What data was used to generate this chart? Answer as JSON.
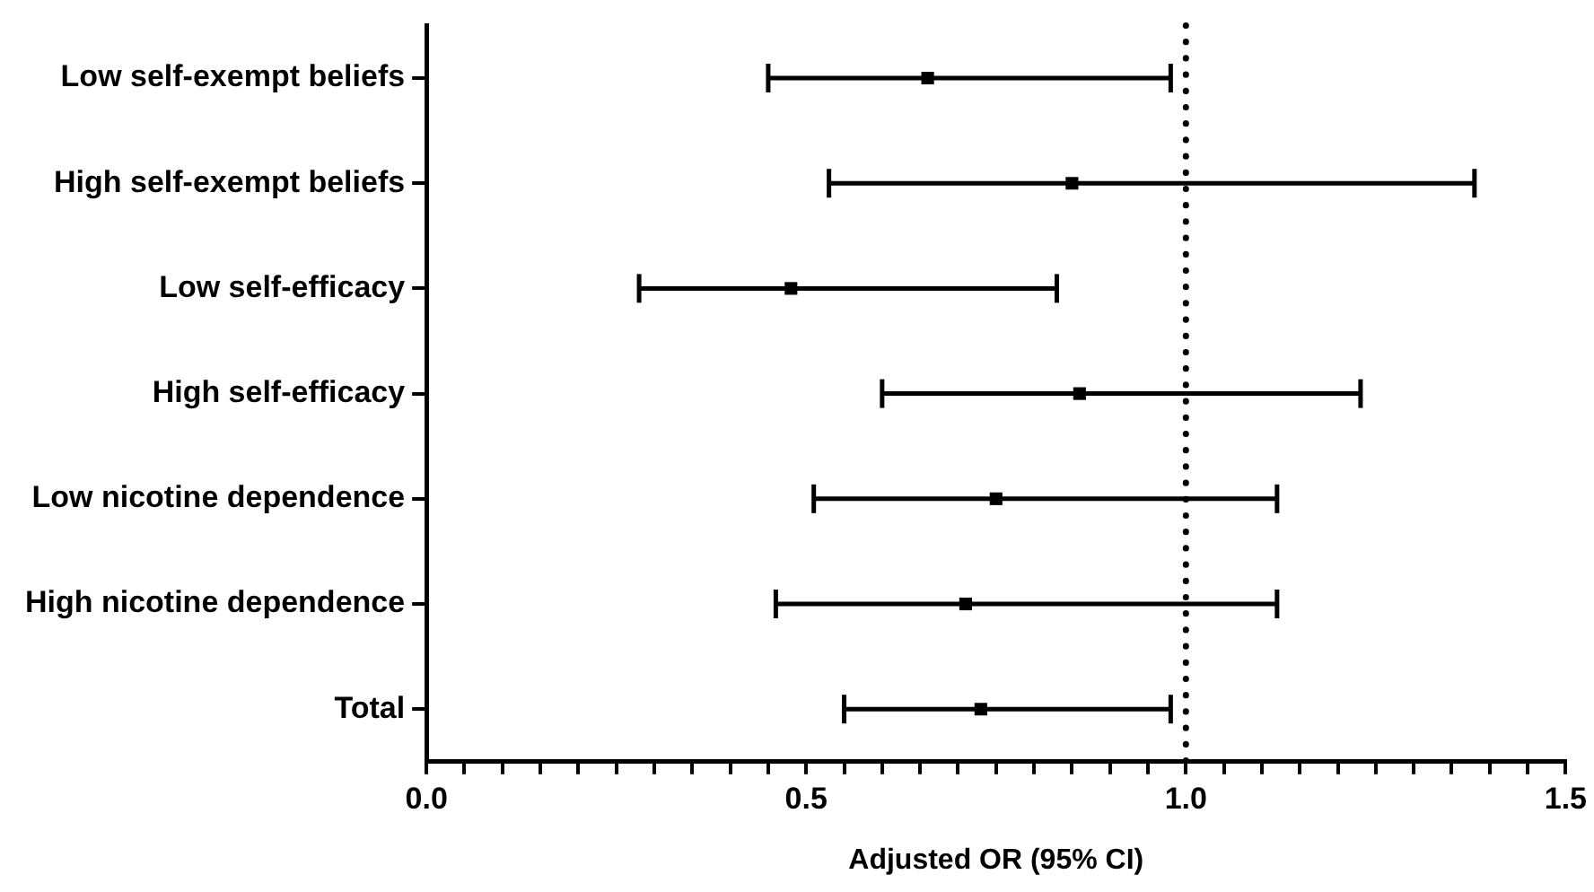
{
  "chart_data": {
    "type": "scatter",
    "orientation": "horizontal",
    "xlabel": "Adjusted OR (95% CI)",
    "categories": [
      "Low self-exempt beliefs",
      "High self-exempt beliefs",
      "Low self-efficacy",
      "High self-efficacy",
      "Low nicotine dependence",
      "High nicotine dependence",
      "Total"
    ],
    "values": [
      0.66,
      0.85,
      0.48,
      0.86,
      0.75,
      0.71,
      0.73
    ],
    "errors": [
      [
        0.45,
        0.98
      ],
      [
        0.53,
        1.38
      ],
      [
        0.28,
        0.83
      ],
      [
        0.6,
        1.23
      ],
      [
        0.51,
        1.12
      ],
      [
        0.46,
        1.12
      ],
      [
        0.55,
        0.98
      ]
    ],
    "color": "#000000",
    "xlim": [
      0,
      1.5
    ],
    "xticks": [
      {
        "value": 0,
        "label": "0.0"
      },
      {
        "value": 0.05,
        "label": null
      },
      {
        "value": 0.1,
        "label": null
      },
      {
        "value": 0.15,
        "label": null
      },
      {
        "value": 0.2,
        "label": null
      },
      {
        "value": 0.25,
        "label": null
      },
      {
        "value": 0.3,
        "label": null
      },
      {
        "value": 0.35,
        "label": null
      },
      {
        "value": 0.4,
        "label": null
      },
      {
        "value": 0.45,
        "label": null
      },
      {
        "value": 0.5,
        "label": "0.5"
      },
      {
        "value": 0.55,
        "label": null
      },
      {
        "value": 0.6,
        "label": null
      },
      {
        "value": 0.65,
        "label": null
      },
      {
        "value": 0.7,
        "label": null
      },
      {
        "value": 0.75,
        "label": null
      },
      {
        "value": 0.8,
        "label": null
      },
      {
        "value": 0.85,
        "label": null
      },
      {
        "value": 0.9,
        "label": null
      },
      {
        "value": 0.95,
        "label": null
      },
      {
        "value": 1,
        "label": "1.0"
      },
      {
        "value": 1.05,
        "label": null
      },
      {
        "value": 1.1,
        "label": null
      },
      {
        "value": 1.15,
        "label": null
      },
      {
        "value": 1.2,
        "label": null
      },
      {
        "value": 1.25,
        "label": null
      },
      {
        "value": 1.3,
        "label": null
      },
      {
        "value": 1.35,
        "label": null
      },
      {
        "value": 1.4,
        "label": null
      },
      {
        "value": 1.45,
        "label": null
      },
      {
        "value": 1.5,
        "label": "1.5"
      }
    ],
    "ref_lines": [
      {
        "axis": "x",
        "value": 1,
        "line_style": "dotted",
        "color": "#000000"
      }
    ],
    "grid": false,
    "legend": false
  }
}
